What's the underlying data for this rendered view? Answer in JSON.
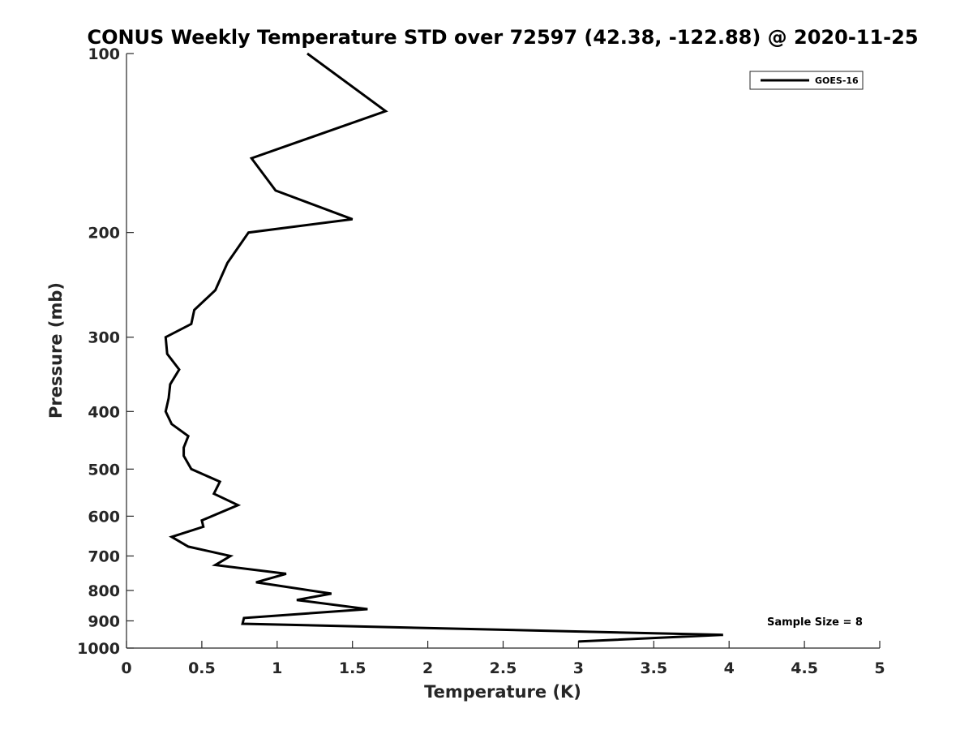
{
  "chart_data": {
    "type": "line",
    "title": "CONUS Weekly Temperature STD over 72597 (42.38, -122.88) @ 2020-11-25",
    "xlabel": "Temperature (K)",
    "ylabel": "Pressure (mb)",
    "xlim": [
      0,
      5
    ],
    "ylim": [
      100,
      1000
    ],
    "y_scale": "log",
    "y_reversed": true,
    "grid": false,
    "x_ticks": [
      0,
      0.5,
      1,
      1.5,
      2,
      2.5,
      3,
      3.5,
      4,
      4.5,
      5
    ],
    "x_tick_labels": [
      "0",
      "0.5",
      "1",
      "1.5",
      "2",
      "2.5",
      "3",
      "3.5",
      "4",
      "4.5",
      "5"
    ],
    "y_ticks": [
      100,
      200,
      300,
      400,
      500,
      600,
      700,
      800,
      900,
      1000
    ],
    "y_tick_labels": [
      "100",
      "200",
      "300",
      "400",
      "500",
      "600",
      "700",
      "800",
      "900",
      "1000"
    ],
    "legend_position": "top-right",
    "series": [
      {
        "name": "GOES-16",
        "color": "#000000",
        "points": [
          [
            1.2,
            100
          ],
          [
            1.72,
            125
          ],
          [
            0.83,
            150
          ],
          [
            0.99,
            170
          ],
          [
            1.5,
            190
          ],
          [
            0.81,
            200
          ],
          [
            0.67,
            225
          ],
          [
            0.59,
            250
          ],
          [
            0.45,
            270
          ],
          [
            0.43,
            285
          ],
          [
            0.26,
            300
          ],
          [
            0.27,
            320
          ],
          [
            0.35,
            340
          ],
          [
            0.29,
            360
          ],
          [
            0.28,
            380
          ],
          [
            0.26,
            400
          ],
          [
            0.3,
            420
          ],
          [
            0.41,
            440
          ],
          [
            0.38,
            460
          ],
          [
            0.38,
            475
          ],
          [
            0.43,
            500
          ],
          [
            0.62,
            525
          ],
          [
            0.58,
            550
          ],
          [
            0.74,
            575
          ],
          [
            0.5,
            610
          ],
          [
            0.51,
            625
          ],
          [
            0.3,
            650
          ],
          [
            0.41,
            675
          ],
          [
            0.69,
            700
          ],
          [
            0.59,
            725
          ],
          [
            1.06,
            750
          ],
          [
            0.86,
            775
          ],
          [
            1.36,
            810
          ],
          [
            1.13,
            830
          ],
          [
            1.6,
            860
          ],
          [
            0.78,
            890
          ],
          [
            0.77,
            910
          ],
          [
            3.96,
            950
          ],
          [
            3.0,
            975
          ]
        ]
      }
    ],
    "annotations": [
      "Sample Size = 8"
    ]
  }
}
